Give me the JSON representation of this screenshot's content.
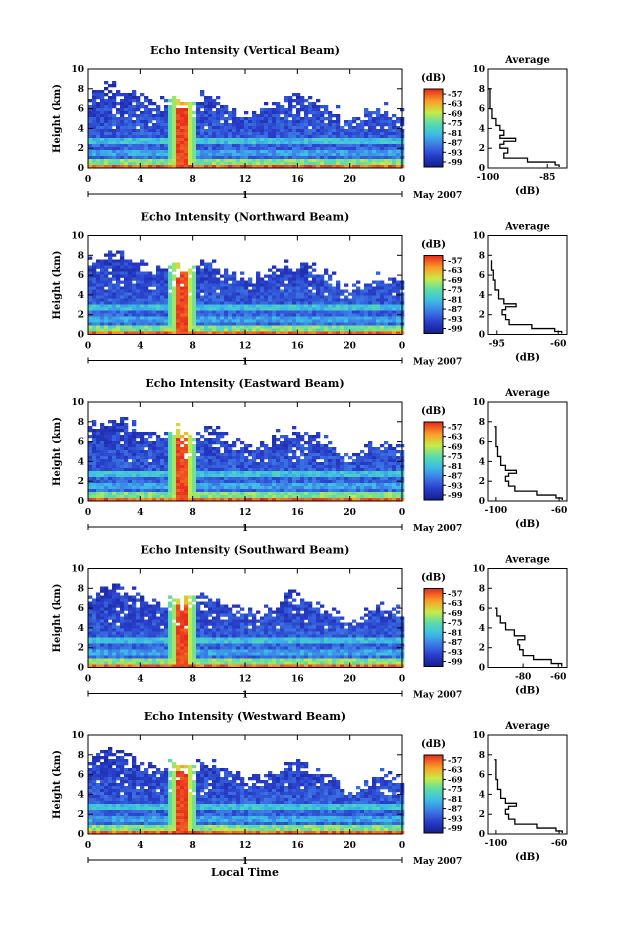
{
  "chart_data": [
    {
      "type": "heatmap",
      "title": "Echo Intensity (Vertical Beam)",
      "ylabel": "Height (km)",
      "xlabel": "",
      "x_ticks": [
        "0",
        "4",
        "8",
        "12",
        "16",
        "20",
        "0"
      ],
      "y_ticks": [
        "0",
        "2",
        "4",
        "6",
        "8",
        "10"
      ],
      "xlim": [
        0,
        24
      ],
      "ylim": [
        0,
        10
      ],
      "date_marker": "1",
      "date_label": "May 2007",
      "colorbar": {
        "unit": "(dB)",
        "ticks": [
          "-57",
          "-63",
          "-69",
          "-75",
          "-81",
          "-87",
          "-93",
          "-99"
        ]
      },
      "profile": {
        "title": "Average",
        "xlabel": "(dB)",
        "x_ticks": [
          "-100",
          "-85"
        ],
        "xlim": [
          -100,
          -80
        ],
        "y_ticks": [
          "0",
          "2",
          "4",
          "6",
          "8",
          "10"
        ],
        "ylim": [
          0,
          10
        ],
        "points": [
          [
            -82,
            0.1
          ],
          [
            -83,
            0.3
          ],
          [
            -90,
            0.6
          ],
          [
            -96,
            1.0
          ],
          [
            -95,
            1.5
          ],
          [
            -97,
            2.0
          ],
          [
            -96,
            2.4
          ],
          [
            -93,
            2.7
          ],
          [
            -97,
            3.0
          ],
          [
            -96,
            3.3
          ],
          [
            -97,
            3.8
          ],
          [
            -98,
            4.3
          ],
          [
            -99,
            5.0
          ],
          [
            -99.5,
            6.0
          ],
          [
            -99.5,
            7.0
          ],
          [
            -100,
            8.0
          ]
        ]
      }
    },
    {
      "type": "heatmap",
      "title": "Echo Intensity (Northward Beam)",
      "ylabel": "Height (km)",
      "xlabel": "",
      "x_ticks": [
        "0",
        "4",
        "8",
        "12",
        "16",
        "20",
        "0"
      ],
      "y_ticks": [
        "0",
        "2",
        "4",
        "6",
        "8",
        "10"
      ],
      "xlim": [
        0,
        24
      ],
      "ylim": [
        0,
        10
      ],
      "date_marker": "1",
      "date_label": "May 2007",
      "colorbar": {
        "unit": "(dB)",
        "ticks": [
          "-57",
          "-63",
          "-69",
          "-75",
          "-81",
          "-87",
          "-93",
          "-99"
        ]
      },
      "profile": {
        "title": "Average",
        "xlabel": "(dB)",
        "x_ticks": [
          "-95",
          "-60"
        ],
        "xlim": [
          -100,
          -55
        ],
        "y_ticks": [
          "0",
          "2",
          "4",
          "6",
          "8",
          "10"
        ],
        "ylim": [
          0,
          10
        ],
        "points": [
          [
            -58,
            0.1
          ],
          [
            -62,
            0.3
          ],
          [
            -75,
            0.6
          ],
          [
            -88,
            1.0
          ],
          [
            -90,
            1.5
          ],
          [
            -92,
            2.0
          ],
          [
            -90,
            2.5
          ],
          [
            -84,
            2.8
          ],
          [
            -91,
            3.1
          ],
          [
            -94,
            3.6
          ],
          [
            -96,
            4.5
          ],
          [
            -97,
            5.5
          ],
          [
            -98,
            6.5
          ],
          [
            -98,
            7.5
          ]
        ]
      }
    },
    {
      "type": "heatmap",
      "title": "Echo Intensity (Eastward Beam)",
      "ylabel": "Height (km)",
      "xlabel": "",
      "x_ticks": [
        "0",
        "4",
        "8",
        "12",
        "16",
        "20",
        "0"
      ],
      "y_ticks": [
        "0",
        "2",
        "4",
        "6",
        "8",
        "10"
      ],
      "xlim": [
        0,
        24
      ],
      "ylim": [
        0,
        10
      ],
      "date_marker": "1",
      "date_label": "May 2007",
      "colorbar": {
        "unit": "(dB)",
        "ticks": [
          "-57",
          "-63",
          "-69",
          "-75",
          "-81",
          "-87",
          "-93",
          "-99"
        ]
      },
      "profile": {
        "title": "Average",
        "xlabel": "(dB)",
        "x_ticks": [
          "-100",
          "-60"
        ],
        "xlim": [
          -105,
          -55
        ],
        "y_ticks": [
          "0",
          "2",
          "4",
          "6",
          "8",
          "10"
        ],
        "ylim": [
          0,
          10
        ],
        "points": [
          [
            -58,
            0.1
          ],
          [
            -62,
            0.3
          ],
          [
            -74,
            0.6
          ],
          [
            -88,
            1.0
          ],
          [
            -92,
            1.5
          ],
          [
            -94,
            2.0
          ],
          [
            -92,
            2.5
          ],
          [
            -87,
            2.8
          ],
          [
            -94,
            3.1
          ],
          [
            -97,
            3.6
          ],
          [
            -99,
            4.5
          ],
          [
            -100,
            5.5
          ],
          [
            -100,
            6.5
          ],
          [
            -101,
            7.5
          ]
        ]
      }
    },
    {
      "type": "heatmap",
      "title": "Echo Intensity (Southward Beam)",
      "ylabel": "Height (km)",
      "xlabel": "",
      "x_ticks": [
        "0",
        "4",
        "8",
        "12",
        "16",
        "20",
        "0"
      ],
      "y_ticks": [
        "0",
        "2",
        "4",
        "6",
        "8",
        "10"
      ],
      "xlim": [
        0,
        24
      ],
      "ylim": [
        0,
        10
      ],
      "date_marker": "1",
      "date_label": "May 2007",
      "colorbar": {
        "unit": "(dB)",
        "ticks": [
          "-57",
          "-63",
          "-69",
          "-75",
          "-81",
          "-87",
          "-93",
          "-99"
        ]
      },
      "profile": {
        "title": "Average",
        "xlabel": "(dB)",
        "x_ticks": [
          "-80",
          "-60"
        ],
        "xlim": [
          -100,
          -55
        ],
        "y_ticks": [
          "0",
          "2",
          "4",
          "6",
          "8",
          "10"
        ],
        "ylim": [
          0,
          10
        ],
        "points": [
          [
            -58,
            0.1
          ],
          [
            -64,
            0.4
          ],
          [
            -74,
            0.8
          ],
          [
            -80,
            1.2
          ],
          [
            -82,
            1.8
          ],
          [
            -83,
            2.3
          ],
          [
            -79,
            2.8
          ],
          [
            -85,
            3.2
          ],
          [
            -90,
            3.8
          ],
          [
            -93,
            4.5
          ],
          [
            -95,
            5.2
          ],
          [
            -96,
            6.0
          ]
        ]
      }
    },
    {
      "type": "heatmap",
      "title": "Echo Intensity (Westward Beam)",
      "ylabel": "Height (km)",
      "xlabel": "Local Time",
      "x_ticks": [
        "0",
        "4",
        "8",
        "12",
        "16",
        "20",
        "0"
      ],
      "y_ticks": [
        "0",
        "2",
        "4",
        "6",
        "8",
        "10"
      ],
      "xlim": [
        0,
        24
      ],
      "ylim": [
        0,
        10
      ],
      "date_marker": "1",
      "date_label": "May 2007",
      "colorbar": {
        "unit": "(dB)",
        "ticks": [
          "-57",
          "-63",
          "-69",
          "-75",
          "-81",
          "-87",
          "-93",
          "-99"
        ]
      },
      "profile": {
        "title": "Average",
        "xlabel": "(dB)",
        "x_ticks": [
          "-100",
          "-60"
        ],
        "xlim": [
          -105,
          -55
        ],
        "y_ticks": [
          "0",
          "2",
          "4",
          "6",
          "8",
          "10"
        ],
        "ylim": [
          0,
          10
        ],
        "points": [
          [
            -58,
            0.1
          ],
          [
            -62,
            0.3
          ],
          [
            -74,
            0.6
          ],
          [
            -88,
            1.0
          ],
          [
            -92,
            1.5
          ],
          [
            -94,
            2.0
          ],
          [
            -92,
            2.5
          ],
          [
            -87,
            2.8
          ],
          [
            -94,
            3.1
          ],
          [
            -97,
            3.6
          ],
          [
            -99,
            4.5
          ],
          [
            -100,
            5.5
          ],
          [
            -100,
            6.5
          ],
          [
            -101,
            7.5
          ]
        ]
      }
    }
  ]
}
